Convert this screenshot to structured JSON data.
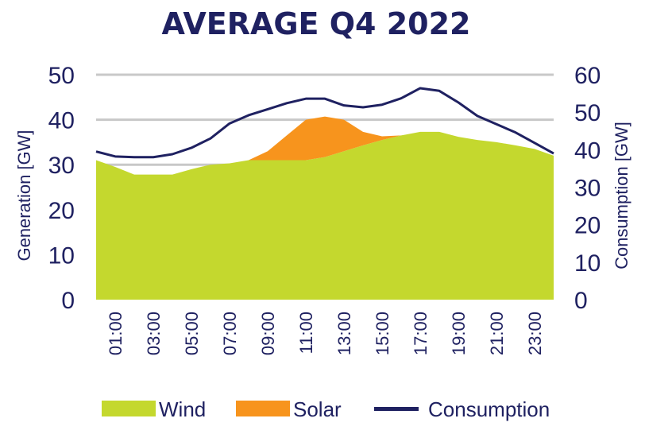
{
  "chart_data": {
    "type": "area",
    "title": "AVERAGE Q4 2022",
    "ylabel": "Generation [GW]",
    "y2label": "Consumption [GW]",
    "ylim": [
      0,
      50
    ],
    "y2lim": [
      0,
      60
    ],
    "yticks": [
      "0",
      "10",
      "20",
      "30",
      "40",
      "50"
    ],
    "y2ticks": [
      "0",
      "10",
      "20",
      "30",
      "40",
      "50",
      "60"
    ],
    "grid": true,
    "legend_position": "bottom",
    "x": [
      "00:00",
      "01:00",
      "02:00",
      "03:00",
      "04:00",
      "05:00",
      "06:00",
      "07:00",
      "08:00",
      "09:00",
      "10:00",
      "11:00",
      "12:00",
      "13:00",
      "14:00",
      "15:00",
      "16:00",
      "17:00",
      "18:00",
      "19:00",
      "20:00",
      "21:00",
      "22:00",
      "23:00",
      "24:00"
    ],
    "xtick_labels": [
      "01:00",
      "03:00",
      "05:00",
      "07:00",
      "09:00",
      "11:00",
      "13:00",
      "15:00",
      "17:00",
      "19:00",
      "21:00",
      "23:00"
    ],
    "series": [
      {
        "name": "Wind",
        "kind": "area",
        "axis": "left",
        "color": "#c4d82e",
        "values": [
          31,
          29.5,
          27.8,
          27.8,
          27.8,
          29,
          30,
          30.3,
          31,
          31,
          31,
          31,
          31.7,
          33,
          34.3,
          35.5,
          36.5,
          37.3,
          37.3,
          36.2,
          35.5,
          35,
          34.3,
          33.5,
          32
        ]
      },
      {
        "name": "Solar",
        "kind": "area",
        "axis": "left",
        "color": "#f7941d",
        "values": [
          0,
          0,
          0,
          0,
          0,
          0,
          0,
          0,
          0,
          2,
          5.5,
          9,
          9,
          7,
          3,
          0.8,
          0,
          0,
          0,
          0,
          0,
          0,
          0,
          0,
          0
        ]
      },
      {
        "name": "Consumption",
        "kind": "line",
        "axis": "right",
        "color": "#1f2161",
        "values": [
          39.5,
          38.2,
          38,
          38,
          38.8,
          40.5,
          43,
          47,
          49.2,
          50.8,
          52.4,
          53.6,
          53.6,
          51.8,
          51.3,
          52,
          53.7,
          56.4,
          55.7,
          52.6,
          49,
          46.8,
          44.6,
          41.8,
          39
        ]
      }
    ]
  }
}
